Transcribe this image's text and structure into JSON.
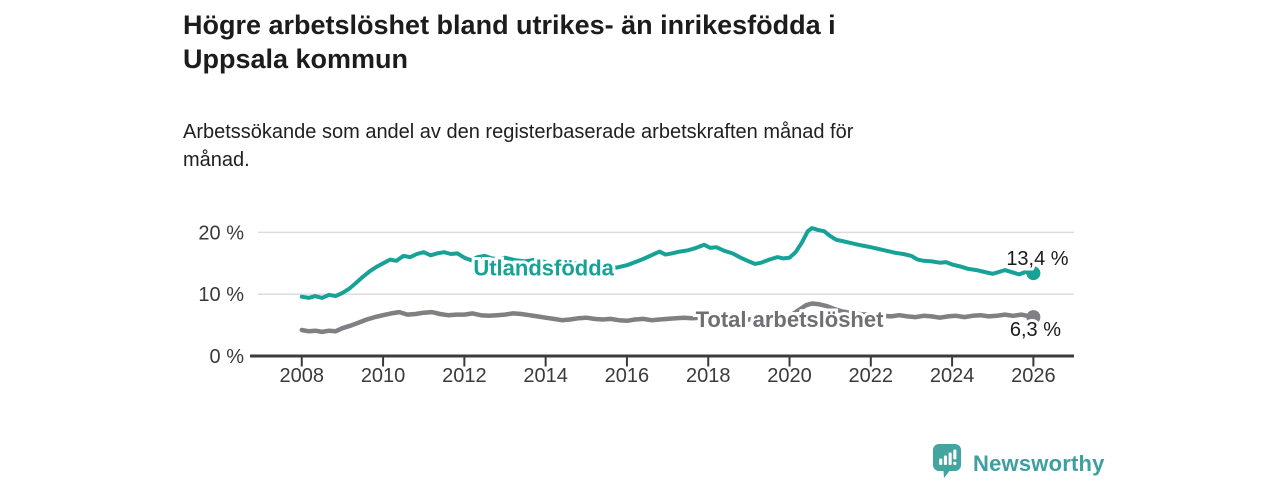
{
  "header": {
    "title_lines": [
      "Högre arbetslöshet bland utrikes- än inrikesfödda i",
      "Uppsala kommun"
    ],
    "subtitle_lines": [
      "Arbetssökande som andel av den registerbaserade arbetskraften månad för",
      "månad."
    ]
  },
  "colors": {
    "teal": "#17a297",
    "gray_line": "#7f8083",
    "gray_label": "#6e6f73",
    "grid": "#dcdcdc",
    "axis": "#3b3b3b",
    "tick_text": "#3a3a3a",
    "value_text": "#1a1a1a",
    "brand_teal": "#44a49f"
  },
  "chart_data": {
    "type": "line",
    "title": "Högre arbetslöshet bland utrikes- än inrikesfödda i Uppsala kommun",
    "subtitle": "Arbetssökande som andel av den registerbaserade arbetskraften månad för månad.",
    "xlabel": "",
    "ylabel": "",
    "xlim": [
      2006.8,
      2026.95
    ],
    "ylim": [
      0,
      22
    ],
    "grid": "horizontal",
    "legend_position": "on-line-labels",
    "x_ticks": [
      {
        "value": 2008,
        "label": "2008"
      },
      {
        "value": 2010,
        "label": "2010"
      },
      {
        "value": 2012,
        "label": "2012"
      },
      {
        "value": 2014,
        "label": "2014"
      },
      {
        "value": 2016,
        "label": "2016"
      },
      {
        "value": 2018,
        "label": "2018"
      },
      {
        "value": 2020,
        "label": "2020"
      },
      {
        "value": 2022,
        "label": "2022"
      },
      {
        "value": 2024,
        "label": "2024"
      },
      {
        "value": 2026,
        "label": "2026"
      }
    ],
    "y_ticks": [
      {
        "value": 0,
        "label": "0 %"
      },
      {
        "value": 10,
        "label": "10 %"
      },
      {
        "value": 20,
        "label": "20 %"
      }
    ],
    "series": [
      {
        "name": "Utlandsfödda",
        "color": "#17a297",
        "width": 4,
        "end_value_label": "13,4 %",
        "points": [
          [
            2008.0,
            9.6
          ],
          [
            2008.17,
            9.4
          ],
          [
            2008.33,
            9.7
          ],
          [
            2008.5,
            9.4
          ],
          [
            2008.67,
            9.9
          ],
          [
            2008.83,
            9.7
          ],
          [
            2009.0,
            10.2
          ],
          [
            2009.17,
            10.9
          ],
          [
            2009.33,
            11.8
          ],
          [
            2009.5,
            12.8
          ],
          [
            2009.67,
            13.7
          ],
          [
            2009.83,
            14.4
          ],
          [
            2010.0,
            15.0
          ],
          [
            2010.17,
            15.6
          ],
          [
            2010.33,
            15.4
          ],
          [
            2010.5,
            16.2
          ],
          [
            2010.67,
            16.0
          ],
          [
            2010.83,
            16.5
          ],
          [
            2011.0,
            16.8
          ],
          [
            2011.17,
            16.3
          ],
          [
            2011.33,
            16.6
          ],
          [
            2011.5,
            16.8
          ],
          [
            2011.67,
            16.5
          ],
          [
            2011.83,
            16.6
          ],
          [
            2012.0,
            15.9
          ],
          [
            2012.17,
            15.5
          ],
          [
            2012.33,
            16.0
          ],
          [
            2012.5,
            16.2
          ],
          [
            2012.67,
            15.8
          ],
          [
            2012.83,
            15.7
          ],
          [
            2013.0,
            15.9
          ],
          [
            2013.25,
            15.5
          ],
          [
            2013.5,
            15.3
          ],
          [
            2013.75,
            15.6
          ],
          [
            2014.0,
            15.2
          ],
          [
            2014.25,
            14.9
          ],
          [
            2014.5,
            14.7
          ],
          [
            2014.75,
            15.0
          ],
          [
            2015.0,
            14.9
          ],
          [
            2015.25,
            14.6
          ],
          [
            2015.5,
            14.4
          ],
          [
            2015.75,
            14.3
          ],
          [
            2016.0,
            14.7
          ],
          [
            2016.2,
            15.2
          ],
          [
            2016.4,
            15.7
          ],
          [
            2016.6,
            16.3
          ],
          [
            2016.8,
            16.9
          ],
          [
            2016.95,
            16.4
          ],
          [
            2017.1,
            16.6
          ],
          [
            2017.3,
            16.9
          ],
          [
            2017.5,
            17.1
          ],
          [
            2017.7,
            17.5
          ],
          [
            2017.9,
            18.0
          ],
          [
            2018.05,
            17.5
          ],
          [
            2018.2,
            17.6
          ],
          [
            2018.4,
            17.0
          ],
          [
            2018.6,
            16.6
          ],
          [
            2018.8,
            15.9
          ],
          [
            2019.0,
            15.3
          ],
          [
            2019.15,
            14.9
          ],
          [
            2019.3,
            15.1
          ],
          [
            2019.5,
            15.6
          ],
          [
            2019.7,
            16.0
          ],
          [
            2019.85,
            15.8
          ],
          [
            2020.0,
            15.9
          ],
          [
            2020.15,
            16.8
          ],
          [
            2020.3,
            18.3
          ],
          [
            2020.45,
            20.2
          ],
          [
            2020.55,
            20.7
          ],
          [
            2020.7,
            20.4
          ],
          [
            2020.85,
            20.2
          ],
          [
            2021.0,
            19.4
          ],
          [
            2021.15,
            18.8
          ],
          [
            2021.3,
            18.6
          ],
          [
            2021.5,
            18.3
          ],
          [
            2021.7,
            18.0
          ],
          [
            2021.85,
            17.8
          ],
          [
            2022.0,
            17.6
          ],
          [
            2022.2,
            17.3
          ],
          [
            2022.4,
            17.0
          ],
          [
            2022.6,
            16.7
          ],
          [
            2022.8,
            16.5
          ],
          [
            2023.0,
            16.2
          ],
          [
            2023.15,
            15.6
          ],
          [
            2023.3,
            15.4
          ],
          [
            2023.5,
            15.3
          ],
          [
            2023.7,
            15.1
          ],
          [
            2023.85,
            15.2
          ],
          [
            2024.0,
            14.8
          ],
          [
            2024.2,
            14.5
          ],
          [
            2024.4,
            14.1
          ],
          [
            2024.6,
            13.9
          ],
          [
            2024.8,
            13.6
          ],
          [
            2025.0,
            13.3
          ],
          [
            2025.15,
            13.6
          ],
          [
            2025.3,
            13.9
          ],
          [
            2025.5,
            13.5
          ],
          [
            2025.65,
            13.2
          ],
          [
            2025.8,
            13.6
          ],
          [
            2026.0,
            13.4
          ]
        ]
      },
      {
        "name": "Total arbetslöshet",
        "color": "#7f8083",
        "width": 4.5,
        "end_value_label": "6,3 %",
        "points": [
          [
            2008.0,
            4.2
          ],
          [
            2008.17,
            4.0
          ],
          [
            2008.33,
            4.1
          ],
          [
            2008.5,
            3.9
          ],
          [
            2008.67,
            4.1
          ],
          [
            2008.83,
            4.0
          ],
          [
            2009.0,
            4.5
          ],
          [
            2009.2,
            4.9
          ],
          [
            2009.4,
            5.4
          ],
          [
            2009.6,
            5.9
          ],
          [
            2009.8,
            6.3
          ],
          [
            2010.0,
            6.6
          ],
          [
            2010.2,
            6.9
          ],
          [
            2010.4,
            7.1
          ],
          [
            2010.6,
            6.7
          ],
          [
            2010.8,
            6.8
          ],
          [
            2011.0,
            7.0
          ],
          [
            2011.2,
            7.1
          ],
          [
            2011.4,
            6.8
          ],
          [
            2011.6,
            6.6
          ],
          [
            2011.8,
            6.7
          ],
          [
            2012.0,
            6.7
          ],
          [
            2012.2,
            6.9
          ],
          [
            2012.4,
            6.6
          ],
          [
            2012.6,
            6.5
          ],
          [
            2012.8,
            6.6
          ],
          [
            2013.0,
            6.7
          ],
          [
            2013.2,
            6.9
          ],
          [
            2013.4,
            6.8
          ],
          [
            2013.6,
            6.6
          ],
          [
            2013.8,
            6.4
          ],
          [
            2014.0,
            6.2
          ],
          [
            2014.2,
            6.0
          ],
          [
            2014.4,
            5.8
          ],
          [
            2014.6,
            5.9
          ],
          [
            2014.8,
            6.1
          ],
          [
            2015.0,
            6.2
          ],
          [
            2015.2,
            6.0
          ],
          [
            2015.4,
            5.9
          ],
          [
            2015.6,
            6.0
          ],
          [
            2015.8,
            5.8
          ],
          [
            2016.0,
            5.7
          ],
          [
            2016.2,
            5.9
          ],
          [
            2016.4,
            6.0
          ],
          [
            2016.6,
            5.8
          ],
          [
            2016.8,
            5.9
          ],
          [
            2017.0,
            6.0
          ],
          [
            2017.2,
            6.1
          ],
          [
            2017.4,
            6.2
          ],
          [
            2017.6,
            6.1
          ],
          [
            2017.8,
            6.2
          ],
          [
            2018.0,
            6.2
          ],
          [
            2018.25,
            6.1
          ],
          [
            2018.5,
            6.0
          ],
          [
            2018.75,
            5.9
          ],
          [
            2019.0,
            5.9
          ],
          [
            2019.25,
            6.0
          ],
          [
            2019.5,
            6.1
          ],
          [
            2019.75,
            6.2
          ],
          [
            2020.0,
            6.4
          ],
          [
            2020.2,
            7.3
          ],
          [
            2020.4,
            8.2
          ],
          [
            2020.55,
            8.5
          ],
          [
            2020.7,
            8.4
          ],
          [
            2020.9,
            8.1
          ],
          [
            2021.1,
            7.6
          ],
          [
            2021.3,
            7.2
          ],
          [
            2021.5,
            7.0
          ],
          [
            2021.7,
            6.8
          ],
          [
            2021.9,
            6.7
          ],
          [
            2022.1,
            6.6
          ],
          [
            2022.3,
            6.5
          ],
          [
            2022.5,
            6.4
          ],
          [
            2022.7,
            6.6
          ],
          [
            2022.9,
            6.4
          ],
          [
            2023.1,
            6.3
          ],
          [
            2023.3,
            6.5
          ],
          [
            2023.5,
            6.4
          ],
          [
            2023.7,
            6.2
          ],
          [
            2023.9,
            6.4
          ],
          [
            2024.1,
            6.5
          ],
          [
            2024.3,
            6.3
          ],
          [
            2024.5,
            6.5
          ],
          [
            2024.7,
            6.6
          ],
          [
            2024.9,
            6.4
          ],
          [
            2025.1,
            6.5
          ],
          [
            2025.3,
            6.7
          ],
          [
            2025.5,
            6.5
          ],
          [
            2025.7,
            6.7
          ],
          [
            2025.85,
            6.5
          ],
          [
            2026.0,
            6.3
          ]
        ]
      }
    ],
    "annotations": [
      {
        "text": "Utlandsfödda",
        "x": 2013.95,
        "y": 13.0,
        "color": "#17a297",
        "size": 22,
        "weight": "bold",
        "halo": true,
        "name": "series-label-utlandsfodda"
      },
      {
        "text": "Total arbetslöshet",
        "x": 2020.0,
        "y": 4.7,
        "color": "#6e6f73",
        "size": 22,
        "weight": "bold",
        "halo": true,
        "name": "series-label-total-arbetsloshet"
      },
      {
        "text": "13,4 %",
        "x": 2026.1,
        "y": 14.7,
        "color": "#1a1a1a",
        "size": 20,
        "weight": "normal",
        "halo": true,
        "name": "end-value-label-utlandsfodda"
      },
      {
        "text": "6,3 %",
        "x": 2026.05,
        "y": 3.2,
        "color": "#1a1a1a",
        "size": 20,
        "weight": "normal",
        "halo": true,
        "name": "end-value-label-total"
      }
    ]
  },
  "footer": {
    "brand": "Newsworthy",
    "logo_icon": "newsworthy-bar-chart-bubble-icon"
  }
}
